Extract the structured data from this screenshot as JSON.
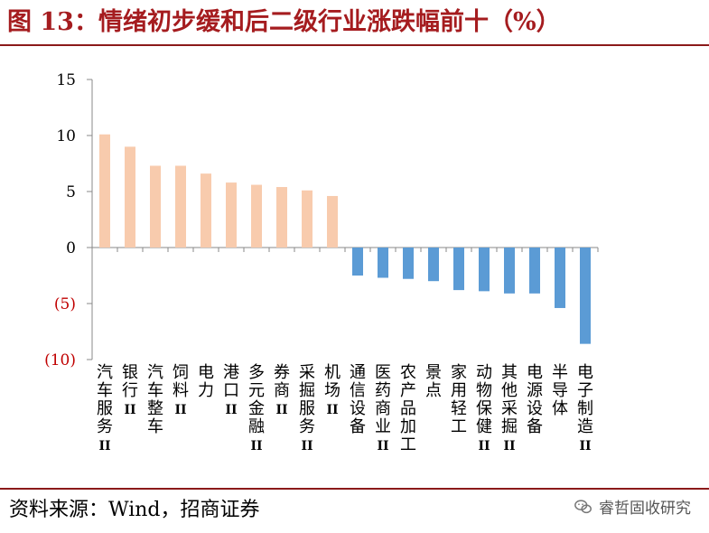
{
  "header": {
    "title": "图 13：情绪初步缓和后二级行业涨跌幅前十（%）"
  },
  "footer": {
    "source": "资料来源：Wind，招商证券",
    "watermark": "睿哲固收研究",
    "watermark_icon": "wechat-icon"
  },
  "chart_data": {
    "type": "bar",
    "title": "",
    "xlabel": "",
    "ylabel": "",
    "ylim": [
      -10,
      15
    ],
    "yticks": [
      15,
      10,
      5,
      0,
      -5,
      -10
    ],
    "ytick_labels": [
      "15",
      "10",
      "5",
      "0",
      "(5)",
      "(10)"
    ],
    "negative_tick_color": "#c00000",
    "grid": false,
    "categories": [
      "汽车服务II",
      "银行II",
      "汽车整车",
      "饲料II",
      "电力",
      "港口II",
      "多元金融II",
      "券商II",
      "采掘服务II",
      "机场II",
      "通信设备",
      "医药商业II",
      "农产品加工",
      "景点",
      "家用轻工",
      "动物保健II",
      "其他采掘II",
      "电源设备",
      "半导体",
      "电子制造II"
    ],
    "values": [
      10.1,
      9.0,
      7.3,
      7.3,
      6.6,
      5.8,
      5.6,
      5.4,
      5.1,
      4.6,
      -2.5,
      -2.7,
      -2.8,
      -3.0,
      -3.8,
      -3.9,
      -4.1,
      -4.1,
      -5.4,
      -8.6
    ],
    "colors": {
      "positive": "#f8cbad",
      "negative": "#5b9bd5"
    }
  }
}
